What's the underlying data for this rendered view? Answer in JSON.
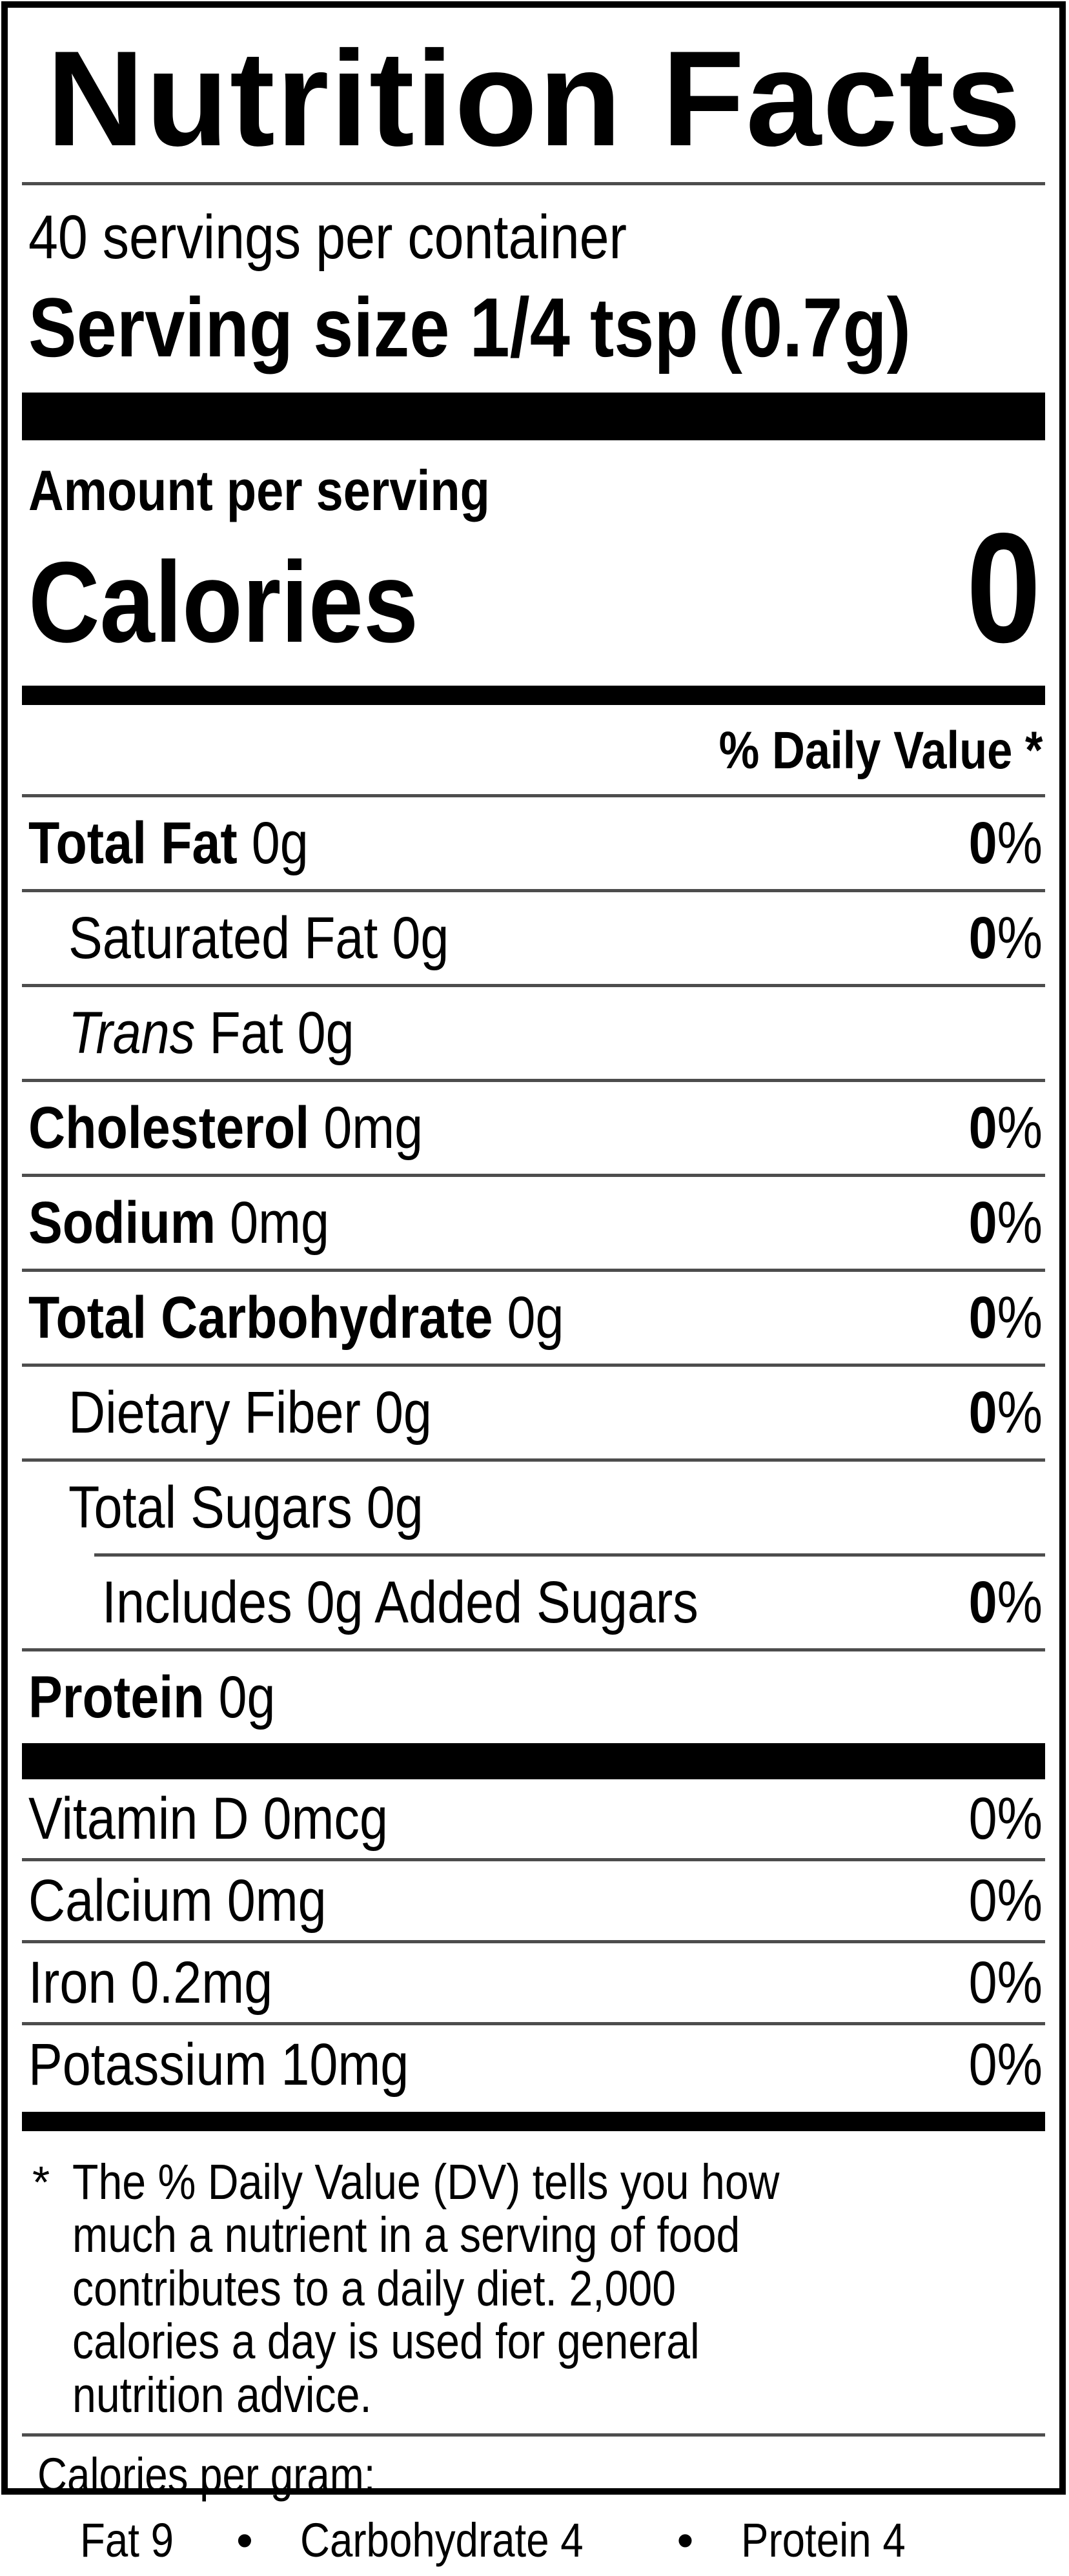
{
  "title": "Nutrition Facts",
  "servings_per_container": "40 servings per container",
  "serving_size_line": "Serving size 1/4 tsp (0.7g)",
  "amount_per_serving": "Amount per serving",
  "calories_label": "Calories",
  "calories_value": "0",
  "daily_value_header": "% Daily Value *",
  "nutrient_rows": [
    {
      "name": "Total Fat",
      "amount": "0g",
      "dv": "0%",
      "indent": 0,
      "bold": true,
      "dv_bold": true
    },
    {
      "name": "Saturated Fat",
      "amount": "0g",
      "dv": "0%",
      "indent": 1,
      "bold": false,
      "dv_bold": true
    },
    {
      "name": "Trans Fat",
      "amount": "0g",
      "dv": "",
      "indent": 1,
      "bold": false,
      "dv_bold": false,
      "italicize_first_word": true
    },
    {
      "name": "Cholesterol",
      "amount": "0mg",
      "dv": "0%",
      "indent": 0,
      "bold": true,
      "dv_bold": true
    },
    {
      "name": "Sodium",
      "amount": "0mg",
      "dv": "0%",
      "indent": 0,
      "bold": true,
      "dv_bold": true
    },
    {
      "name": "Total Carbohydrate",
      "amount": "0g",
      "dv": "0%",
      "indent": 0,
      "bold": true,
      "dv_bold": true
    },
    {
      "name": "Dietary Fiber",
      "amount": "0g",
      "dv": "0%",
      "indent": 1,
      "bold": false,
      "dv_bold": true
    },
    {
      "name": "Total Sugars",
      "amount": "0g",
      "dv": "",
      "indent": 1,
      "bold": false,
      "dv_bold": false
    },
    {
      "name": "Includes 0g Added Sugars",
      "amount": "",
      "dv": "0%",
      "indent": 2,
      "bold": false,
      "dv_bold": true,
      "sub_divider": true
    },
    {
      "name": "Protein",
      "amount": "0g",
      "dv": "",
      "indent": 0,
      "bold": true,
      "dv_bold": false
    }
  ],
  "vitamin_rows": [
    {
      "name": "Vitamin D",
      "amount": "0mcg",
      "dv": "0%"
    },
    {
      "name": "Calcium",
      "amount": "0mg",
      "dv": "0%"
    },
    {
      "name": "Iron",
      "amount": "0.2mg",
      "dv": "0%"
    },
    {
      "name": "Potassium",
      "amount": "10mg",
      "dv": "0%"
    }
  ],
  "footnote_marker": "*",
  "footnote_text": "The % Daily Value (DV) tells you how much a nutrient in a serving of food contributes to a daily diet. 2,000 calories a day is used for general nutrition advice.",
  "calories_per_gram": {
    "heading": "Calories per gram:",
    "bullet": "•",
    "items": [
      "Fat 9",
      "Carbohydrate 4",
      "Protein 4"
    ]
  },
  "colors": {
    "text": "#000000",
    "bar": "#000000",
    "divider": "#4d4d4d",
    "background": "#ffffff"
  }
}
